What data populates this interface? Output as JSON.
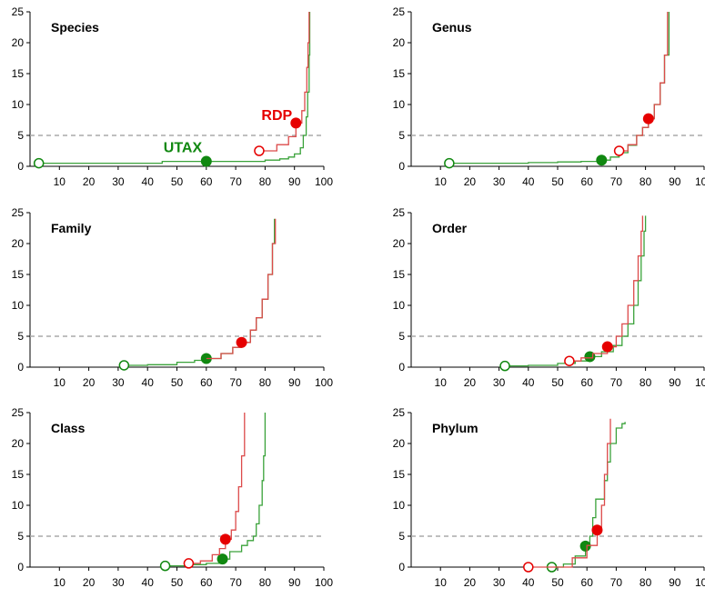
{
  "figure": {
    "panels": [
      "Species",
      "Genus",
      "Family",
      "Order",
      "Class",
      "Phylum"
    ]
  },
  "colors": {
    "RDP": "#dc4a4a",
    "UTAX": "#3aa23a",
    "RDP_marker": "#e60000",
    "UTAX_marker": "#118811",
    "threshold": "#aaaaaa"
  },
  "chart_data": [
    {
      "type": "line",
      "title": "Species",
      "xlabel": "",
      "ylabel": "",
      "xlim": [
        0,
        100
      ],
      "ylim": [
        0,
        25
      ],
      "xticks": [
        10,
        20,
        30,
        40,
        50,
        60,
        70,
        80,
        90,
        100
      ],
      "yticks": [
        0,
        5,
        10,
        15,
        20,
        25
      ],
      "threshold_y": 5,
      "annotations": [
        {
          "text": "RDP",
          "series": "RDP",
          "x": 84,
          "y": 7.5
        },
        {
          "text": "UTAX",
          "series": "UTAX",
          "x": 52,
          "y": 2.3
        }
      ],
      "series": [
        {
          "name": "RDP",
          "points": [
            [
              78,
              2.5
            ],
            [
              84,
              3.5
            ],
            [
              88,
              4.8
            ],
            [
              90.5,
              7
            ],
            [
              92.5,
              9
            ],
            [
              93.5,
              12
            ],
            [
              94.2,
              16
            ],
            [
              94.6,
              20
            ],
            [
              95,
              25
            ]
          ],
          "markers": {
            "open": [
              78,
              2.5
            ],
            "filled": [
              90.5,
              7
            ]
          }
        },
        {
          "name": "UTAX",
          "points": [
            [
              3,
              0.5
            ],
            [
              10,
              0.5
            ],
            [
              20,
              0.5
            ],
            [
              30,
              0.5
            ],
            [
              40,
              0.5
            ],
            [
              45,
              0.8
            ],
            [
              50,
              0.8
            ],
            [
              60,
              0.8
            ],
            [
              70,
              0.8
            ],
            [
              80,
              1
            ],
            [
              85,
              1.2
            ],
            [
              88,
              1.5
            ],
            [
              90,
              2
            ],
            [
              92,
              3
            ],
            [
              93,
              5
            ],
            [
              94,
              8
            ],
            [
              94.5,
              12
            ],
            [
              95,
              18
            ],
            [
              95.2,
              25
            ]
          ],
          "markers": {
            "open": [
              3,
              0.5
            ],
            "filled": [
              60,
              0.8
            ]
          }
        }
      ]
    },
    {
      "type": "line",
      "title": "Genus",
      "xlabel": "",
      "ylabel": "",
      "xlim": [
        0,
        100
      ],
      "ylim": [
        0,
        25
      ],
      "xticks": [
        10,
        20,
        30,
        40,
        50,
        60,
        70,
        80,
        90,
        100
      ],
      "yticks": [
        0,
        5,
        10,
        15,
        20,
        25
      ],
      "threshold_y": 5,
      "annotations": [],
      "series": [
        {
          "name": "RDP",
          "points": [
            [
              71,
              2.5
            ],
            [
              74,
              3.5
            ],
            [
              77,
              5
            ],
            [
              79,
              6.3
            ],
            [
              81,
              7.7
            ],
            [
              83,
              10
            ],
            [
              85,
              13.5
            ],
            [
              86.5,
              18
            ],
            [
              87.5,
              25
            ]
          ],
          "markers": {
            "open": [
              71,
              2.5
            ],
            "filled": [
              81,
              7.7
            ]
          }
        },
        {
          "name": "UTAX",
          "points": [
            [
              13,
              0.5
            ],
            [
              20,
              0.5
            ],
            [
              30,
              0.5
            ],
            [
              40,
              0.6
            ],
            [
              50,
              0.7
            ],
            [
              58,
              0.8
            ],
            [
              65,
              1
            ],
            [
              68,
              1.5
            ],
            [
              71,
              2.2
            ],
            [
              74,
              3.4
            ],
            [
              77,
              5
            ],
            [
              79,
              6.3
            ],
            [
              81,
              7.7
            ],
            [
              83,
              10
            ],
            [
              85,
              13.5
            ],
            [
              86.5,
              18
            ],
            [
              88,
              25
            ]
          ],
          "markers": {
            "open": [
              13,
              0.5
            ],
            "filled": [
              65,
              1
            ]
          }
        }
      ]
    },
    {
      "type": "line",
      "title": "Family",
      "xlabel": "",
      "ylabel": "",
      "xlim": [
        0,
        100
      ],
      "ylim": [
        0,
        25
      ],
      "xticks": [
        10,
        20,
        30,
        40,
        50,
        60,
        70,
        80,
        90,
        100
      ],
      "yticks": [
        0,
        5,
        10,
        15,
        20,
        25
      ],
      "threshold_y": 5,
      "annotations": [],
      "series": [
        {
          "name": "RDP",
          "points": [
            [
              60,
              1.4
            ],
            [
              65,
              2.2
            ],
            [
              69,
              3.2
            ],
            [
              72,
              4
            ],
            [
              75,
              6
            ],
            [
              77,
              8
            ],
            [
              79,
              11
            ],
            [
              81,
              15
            ],
            [
              82.5,
              20
            ],
            [
              83.5,
              24
            ]
          ],
          "markers": {
            "open": null,
            "filled": [
              72,
              4
            ]
          }
        },
        {
          "name": "UTAX",
          "points": [
            [
              32,
              0.3
            ],
            [
              40,
              0.4
            ],
            [
              50,
              0.8
            ],
            [
              56,
              1.1
            ],
            [
              60,
              1.4
            ],
            [
              65,
              2.2
            ],
            [
              69,
              3.2
            ],
            [
              72,
              4
            ],
            [
              75,
              6
            ],
            [
              77,
              8
            ],
            [
              79,
              11
            ],
            [
              81,
              15
            ],
            [
              82.5,
              20
            ],
            [
              83.2,
              24
            ]
          ],
          "markers": {
            "open": [
              32,
              0.3
            ],
            "filled": [
              60,
              1.4
            ]
          }
        }
      ]
    },
    {
      "type": "line",
      "title": "Order",
      "xlabel": "",
      "ylabel": "",
      "xlim": [
        0,
        100
      ],
      "ylim": [
        0,
        25
      ],
      "xticks": [
        10,
        20,
        30,
        40,
        50,
        60,
        70,
        80,
        90,
        100
      ],
      "yticks": [
        0,
        5,
        10,
        15,
        20,
        25
      ],
      "threshold_y": 5,
      "annotations": [],
      "series": [
        {
          "name": "RDP",
          "points": [
            [
              54,
              1
            ],
            [
              58,
              1.5
            ],
            [
              62,
              2.2
            ],
            [
              67,
              3.3
            ],
            [
              70,
              5
            ],
            [
              72,
              7
            ],
            [
              74,
              10
            ],
            [
              76,
              14
            ],
            [
              77.5,
              18
            ],
            [
              78.5,
              22
            ],
            [
              79,
              24.5
            ]
          ],
          "markers": {
            "open": [
              54,
              1
            ],
            "filled": [
              67,
              3.3
            ]
          }
        },
        {
          "name": "UTAX",
          "points": [
            [
              32,
              0.2
            ],
            [
              40,
              0.3
            ],
            [
              50,
              0.6
            ],
            [
              56,
              1
            ],
            [
              61,
              1.7
            ],
            [
              65,
              2.5
            ],
            [
              69,
              3.5
            ],
            [
              72,
              5
            ],
            [
              74,
              7
            ],
            [
              76,
              10
            ],
            [
              77.5,
              14
            ],
            [
              78.5,
              18
            ],
            [
              79.5,
              22
            ],
            [
              80,
              24.5
            ]
          ],
          "markers": {
            "open": [
              32,
              0.2
            ],
            "filled": [
              61,
              1.7
            ]
          }
        }
      ]
    },
    {
      "type": "line",
      "title": "Class",
      "xlabel": "",
      "ylabel": "",
      "xlim": [
        0,
        100
      ],
      "ylim": [
        0,
        25
      ],
      "xticks": [
        10,
        20,
        30,
        40,
        50,
        60,
        70,
        80,
        90,
        100
      ],
      "yticks": [
        0,
        5,
        10,
        15,
        20,
        25
      ],
      "threshold_y": 5,
      "annotations": [],
      "series": [
        {
          "name": "RDP",
          "points": [
            [
              54,
              0.6
            ],
            [
              58,
              1
            ],
            [
              62,
              2
            ],
            [
              64.5,
              3
            ],
            [
              66.5,
              4.5
            ],
            [
              68.5,
              6
            ],
            [
              70,
              9
            ],
            [
              71,
              13
            ],
            [
              72,
              18
            ],
            [
              73,
              25
            ]
          ],
          "markers": {
            "open": [
              54,
              0.6
            ],
            "filled": [
              66.5,
              4.5
            ]
          }
        },
        {
          "name": "UTAX",
          "points": [
            [
              46,
              0.2
            ],
            [
              55,
              0.4
            ],
            [
              60,
              0.6
            ],
            [
              65.5,
              1.3
            ],
            [
              68,
              2.5
            ],
            [
              72,
              3.5
            ],
            [
              74,
              4.3
            ],
            [
              76,
              5
            ],
            [
              77,
              7
            ],
            [
              78,
              10
            ],
            [
              79,
              14
            ],
            [
              79.5,
              18
            ],
            [
              80,
              25
            ]
          ],
          "markers": {
            "open": [
              46,
              0.2
            ],
            "filled": [
              65.5,
              1.3
            ]
          }
        }
      ]
    },
    {
      "type": "line",
      "title": "Phylum",
      "xlabel": "",
      "ylabel": "",
      "xlim": [
        0,
        100
      ],
      "ylim": [
        0,
        25
      ],
      "xticks": [
        10,
        20,
        30,
        40,
        50,
        60,
        70,
        80,
        90,
        100
      ],
      "yticks": [
        0,
        5,
        10,
        15,
        20,
        25
      ],
      "threshold_y": 5,
      "annotations": [],
      "series": [
        {
          "name": "RDP",
          "points": [
            [
              40,
              0
            ],
            [
              48,
              0
            ],
            [
              55,
              1.5
            ],
            [
              60,
              3.5
            ],
            [
              63.5,
              6
            ],
            [
              65,
              10
            ],
            [
              66,
              15
            ],
            [
              67,
              20
            ],
            [
              68,
              24
            ]
          ],
          "markers": {
            "open": [
              40,
              0
            ],
            "filled": [
              63.5,
              6
            ]
          }
        },
        {
          "name": "UTAX",
          "points": [
            [
              48,
              0
            ],
            [
              52,
              0.5
            ],
            [
              56,
              1.8
            ],
            [
              59.5,
              3.4
            ],
            [
              61,
              5
            ],
            [
              62,
              8
            ],
            [
              63,
              11
            ],
            [
              66,
              14
            ],
            [
              67,
              17
            ],
            [
              68,
              20
            ],
            [
              70,
              22.5
            ],
            [
              72,
              23.2
            ],
            [
              73,
              23.5
            ]
          ],
          "markers": {
            "open": [
              48,
              0
            ],
            "filled": [
              59.5,
              3.4
            ]
          }
        }
      ]
    }
  ]
}
